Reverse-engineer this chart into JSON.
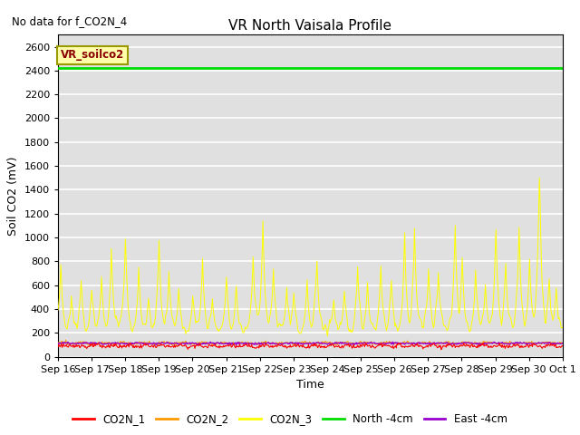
{
  "title": "VR North Vaisala Profile",
  "note": "No data for f_CO2N_4",
  "ylabel": "Soil CO2 (mV)",
  "xlabel": "Time",
  "annotation": "VR_soilco2",
  "ylim": [
    0,
    2700
  ],
  "yticks": [
    0,
    200,
    400,
    600,
    800,
    1000,
    1200,
    1400,
    1600,
    1800,
    2000,
    2200,
    2400,
    2600
  ],
  "north_4cm_value": 2420,
  "colors": {
    "CO2N_1": "#ff0000",
    "CO2N_2": "#ff9900",
    "CO2N_3": "#ffff00",
    "North_4cm": "#00dd00",
    "East_4cm": "#9900cc"
  },
  "legend_labels": [
    "CO2N_1",
    "CO2N_2",
    "CO2N_3",
    "North -4cm",
    "East -4cm"
  ],
  "bg_color": "#e0e0e0",
  "grid_color": "#ffffff"
}
